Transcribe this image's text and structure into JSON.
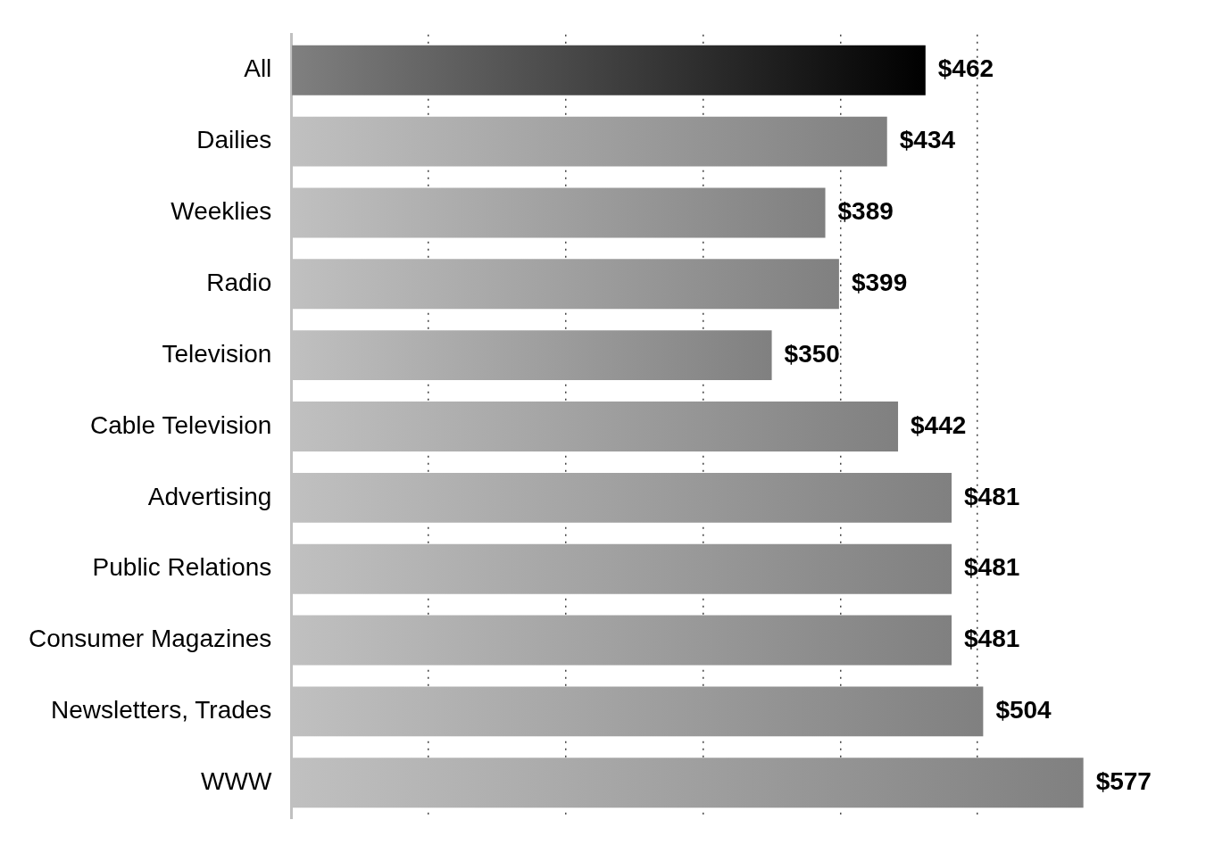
{
  "chart_data": {
    "type": "bar",
    "orientation": "horizontal",
    "categories": [
      "All",
      "Dailies",
      "Weeklies",
      "Radio",
      "Television",
      "Cable Television",
      "Advertising",
      "Public Relations",
      "Consumer Magazines",
      "Newsletters, Trades",
      "WWW"
    ],
    "values": [
      462,
      434,
      389,
      399,
      350,
      442,
      481,
      481,
      481,
      504,
      577
    ],
    "value_labels": [
      "$462",
      "$434",
      "$389",
      "$399",
      "$350",
      "$442",
      "$481",
      "$481",
      "$481",
      "$504",
      "$577"
    ],
    "colors": [
      "#000000",
      "#808080",
      "#808080",
      "#808080",
      "#808080",
      "#808080",
      "#808080",
      "#808080",
      "#808080",
      "#808080",
      "#808080"
    ],
    "xticks": [
      {
        "value": 0,
        "label": null
      },
      {
        "value": 100,
        "label": null
      },
      {
        "value": 200,
        "label": null
      },
      {
        "value": 300,
        "label": null
      },
      {
        "value": 400,
        "label": null
      },
      {
        "value": 500,
        "label": null
      }
    ],
    "grid": "x",
    "tick_labels": "y",
    "legend": false
  }
}
